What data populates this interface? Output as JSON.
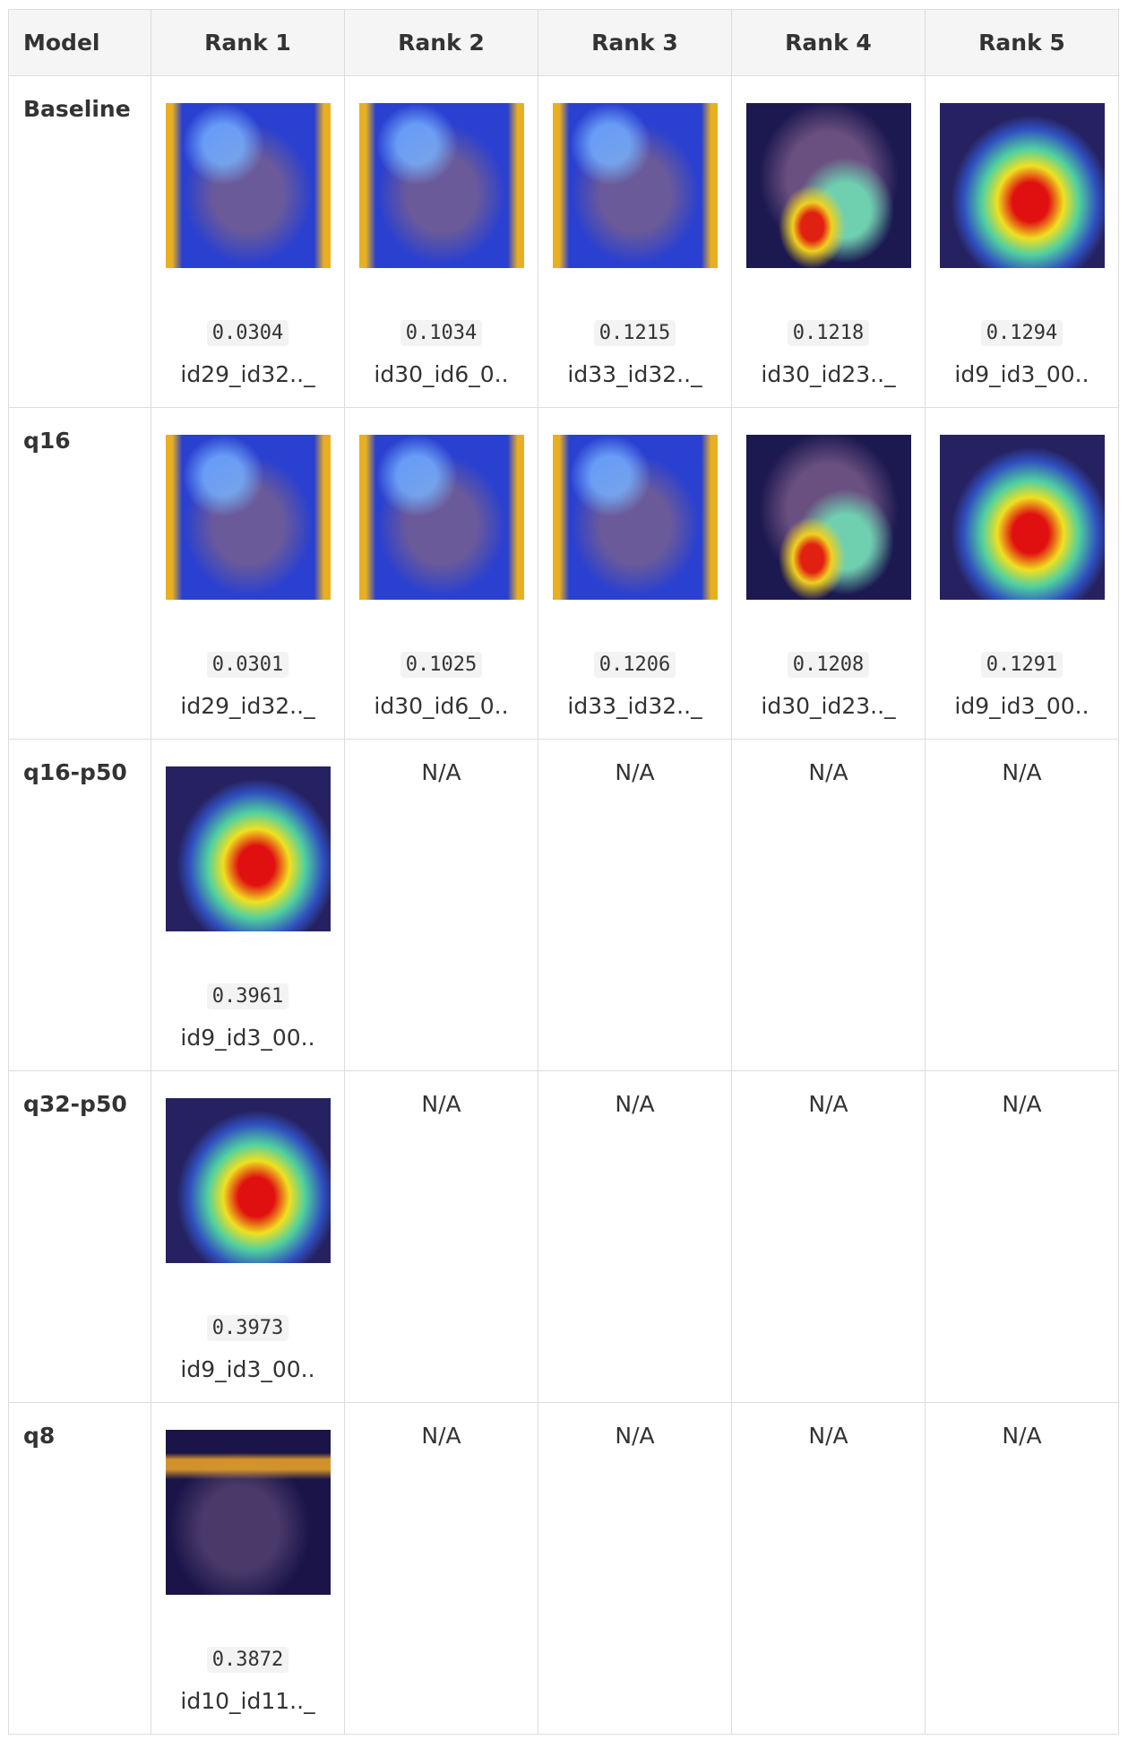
{
  "table": {
    "header": [
      "Model",
      "Rank 1",
      "Rank 2",
      "Rank 3",
      "Rank 4",
      "Rank 5"
    ],
    "rows": [
      {
        "model": "Baseline",
        "cells": [
          {
            "score": "0.0304",
            "id": "id29_id32.._"
          },
          {
            "score": "0.1034",
            "id": "id30_id6_0.."
          },
          {
            "score": "0.1215",
            "id": "id33_id32.._"
          },
          {
            "score": "0.1218",
            "id": "id30_id23.._"
          },
          {
            "score": "0.1294",
            "id": "id9_id3_00.."
          }
        ]
      },
      {
        "model": "q16",
        "cells": [
          {
            "score": "0.0301",
            "id": "id29_id32.._"
          },
          {
            "score": "0.1025",
            "id": "id30_id6_0.."
          },
          {
            "score": "0.1206",
            "id": "id33_id32.._"
          },
          {
            "score": "0.1208",
            "id": "id30_id23.._"
          },
          {
            "score": "0.1291",
            "id": "id9_id3_00.."
          }
        ]
      },
      {
        "model": "q16-p50",
        "cells": [
          {
            "score": "0.3961",
            "id": "id9_id3_00.."
          },
          {
            "text": "N/A"
          },
          {
            "text": "N/A"
          },
          {
            "text": "N/A"
          },
          {
            "text": "N/A"
          }
        ]
      },
      {
        "model": "q32-p50",
        "cells": [
          {
            "score": "0.3973",
            "id": "id9_id3_00.."
          },
          {
            "text": "N/A"
          },
          {
            "text": "N/A"
          },
          {
            "text": "N/A"
          },
          {
            "text": "N/A"
          }
        ]
      },
      {
        "model": "q8",
        "cells": [
          {
            "score": "0.3872",
            "id": "id10_id11.._"
          },
          {
            "text": "N/A"
          },
          {
            "text": "N/A"
          },
          {
            "text": "N/A"
          },
          {
            "text": "N/A"
          }
        ]
      }
    ]
  }
}
